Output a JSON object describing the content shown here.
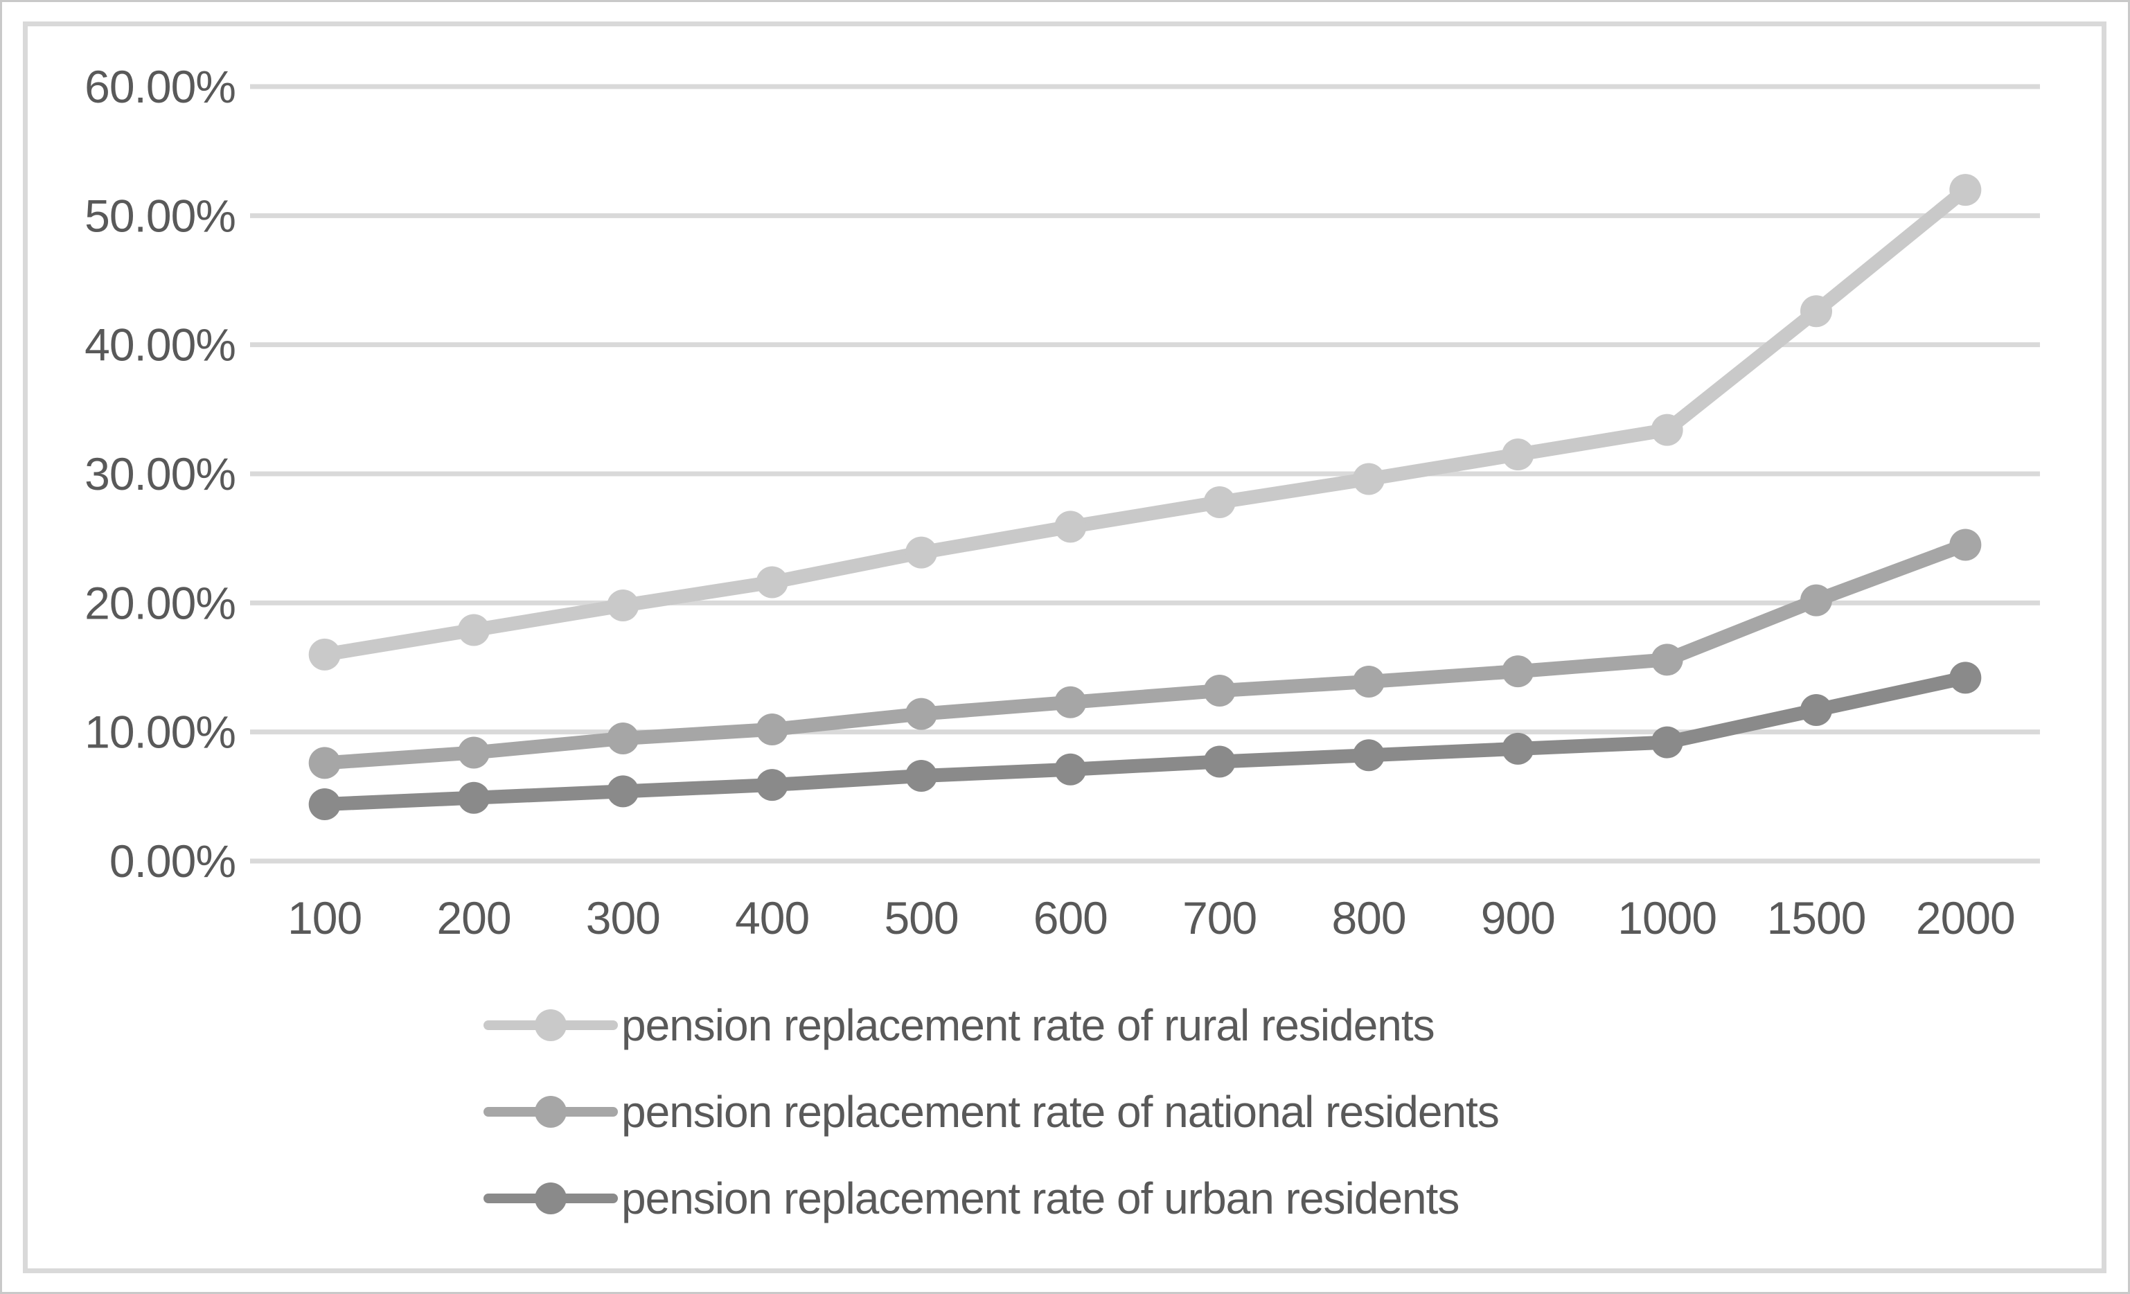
{
  "chart_data": {
    "type": "line",
    "title": "",
    "xlabel": "",
    "ylabel": "",
    "categories": [
      "100",
      "200",
      "300",
      "400",
      "500",
      "600",
      "700",
      "800",
      "900",
      "1000",
      "1500",
      "2000"
    ],
    "series": [
      {
        "name": "pension replacement rate of rural residents",
        "color": "#c9c9c9",
        "values": [
          16.0,
          17.9,
          19.8,
          21.6,
          23.9,
          25.9,
          27.8,
          29.6,
          31.5,
          33.4,
          42.6,
          52.0
        ]
      },
      {
        "name": "pension replacement rate of national residents",
        "color": "#a6a6a6",
        "values": [
          7.6,
          8.4,
          9.5,
          10.2,
          11.4,
          12.3,
          13.2,
          13.9,
          14.7,
          15.6,
          20.2,
          24.5
        ]
      },
      {
        "name": "pension replacement rate of urban residents",
        "color": "#8a8a8a",
        "values": [
          4.4,
          4.9,
          5.4,
          5.9,
          6.6,
          7.1,
          7.7,
          8.2,
          8.7,
          9.2,
          11.7,
          14.2
        ]
      }
    ],
    "y_ticks": [
      {
        "label": "60.00%",
        "value": 60
      },
      {
        "label": "50.00%",
        "value": 50
      },
      {
        "label": "40.00%",
        "value": 40
      },
      {
        "label": "30.00%",
        "value": 30
      },
      {
        "label": "20.00%",
        "value": 20
      },
      {
        "label": "10.00%",
        "value": 10
      },
      {
        "label": "0.00%",
        "value": 0
      }
    ],
    "ylim": [
      0,
      60
    ],
    "grid": "horizontal",
    "legend_position": "bottom",
    "marker": "circle"
  },
  "colors": {
    "grid": "#d9d9d9",
    "frame_border": "#d9d9d9",
    "tick_text": "#595959",
    "legend_text": "#595959",
    "background": "#ffffff"
  }
}
